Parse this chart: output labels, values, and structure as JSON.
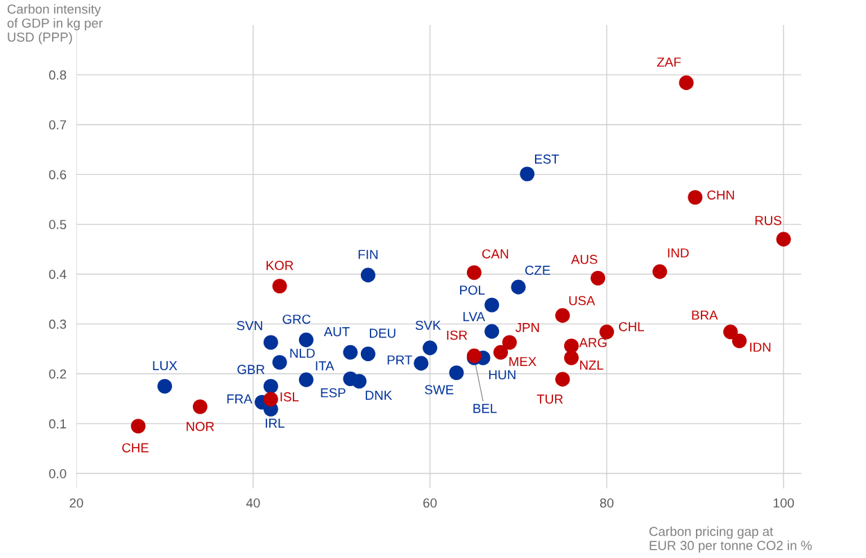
{
  "chart_data": {
    "type": "scatter",
    "xlabel": "Carbon pricing gap at\nEUR 30 per tonne CO2 in %",
    "ylabel": "Carbon intensity\nof GDP in kg per\nUSD (PPP)",
    "xlim": [
      20,
      102
    ],
    "xticks": [
      20,
      40,
      60,
      80,
      100
    ],
    "ylim": [
      -0.03,
      0.9
    ],
    "yticks": [
      {
        "value": 0,
        "label": "0.0"
      },
      0.1,
      0.2,
      0.3,
      0.4,
      0.5,
      0.6,
      0.7,
      0.8
    ],
    "grid": true,
    "marker": "circle",
    "legend": false,
    "series": [
      {
        "color": "#003299",
        "x": [
          30,
          42,
          46,
          43,
          42,
          41,
          42,
          46,
          51,
          53,
          51,
          52,
          59,
          60,
          63,
          65,
          66,
          53,
          67,
          67,
          70,
          71
        ],
        "values": [
          0.175,
          0.263,
          0.268,
          0.223,
          0.175,
          0.143,
          0.129,
          0.188,
          0.243,
          0.24,
          0.19,
          0.185,
          0.221,
          0.252,
          0.202,
          0.232,
          0.232,
          0.398,
          0.338,
          0.285,
          0.374,
          0.601
        ],
        "value_labels": [
          "LUX",
          "SVN",
          "GRC",
          "NLD",
          "GBR",
          "FRA",
          "IRL",
          "ITA",
          "AUT",
          "DEU",
          "ESP",
          "DNK",
          "PRT",
          "SVK",
          "SWE",
          "BEL",
          "HUN",
          "FIN",
          "POL",
          "LVA",
          "CZE",
          "EST"
        ]
      },
      {
        "color": "#c00000",
        "x": [
          27,
          34,
          42,
          43,
          65,
          65,
          68,
          69,
          75,
          75,
          76,
          76,
          79,
          80,
          86,
          89,
          90,
          100,
          94,
          95
        ],
        "values": [
          0.095,
          0.134,
          0.149,
          0.376,
          0.403,
          0.236,
          0.243,
          0.263,
          0.317,
          0.189,
          0.256,
          0.232,
          0.392,
          0.284,
          0.405,
          0.784,
          0.554,
          0.47,
          0.284,
          0.266
        ],
        "value_labels": [
          "CHE",
          "NOR",
          "ISL",
          "KOR",
          "CAN",
          "ISR",
          "MEX",
          "JPN",
          "USA",
          "TUR",
          "ARG",
          "NZL",
          "AUS",
          "CHL",
          "IND",
          "ZAF",
          "CHN",
          "RUS",
          "BRA",
          "IDN"
        ]
      }
    ]
  }
}
